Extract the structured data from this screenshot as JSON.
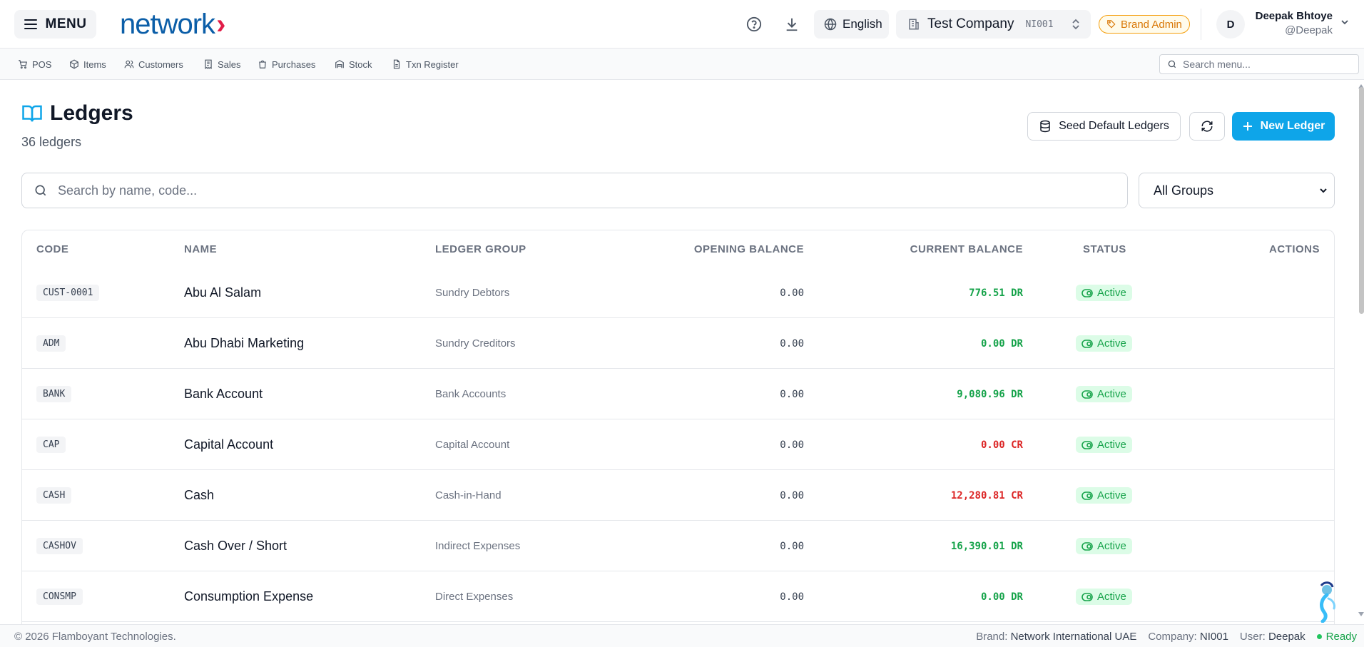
{
  "header": {
    "menu_label": "MENU",
    "logo_text": "network",
    "logo_mark": "›",
    "language": "English",
    "company": {
      "name": "Test Company",
      "code": "NI001"
    },
    "role_badge": "Brand Admin",
    "user": {
      "initial": "D",
      "name": "Deepak Bhtoye",
      "handle": "@Deepak"
    }
  },
  "nav": {
    "items": [
      {
        "label": "POS",
        "icon": "cart-icon"
      },
      {
        "label": "Items",
        "icon": "package-icon"
      },
      {
        "label": "Customers",
        "icon": "users-icon"
      },
      {
        "label": "Sales",
        "icon": "receipt-icon"
      },
      {
        "label": "Purchases",
        "icon": "shopping-bag-icon"
      },
      {
        "label": "Stock",
        "icon": "warehouse-icon"
      },
      {
        "label": "Txn Register",
        "icon": "file-text-icon"
      }
    ],
    "search_placeholder": "Search menu..."
  },
  "page": {
    "title": "Ledgers",
    "subtitle": "36 ledgers",
    "seed_button": "Seed Default Ledgers",
    "new_button": "New Ledger",
    "search_placeholder": "Search by name, code...",
    "group_filter": "All Groups"
  },
  "table": {
    "columns": [
      "CODE",
      "NAME",
      "LEDGER GROUP",
      "OPENING BALANCE",
      "CURRENT BALANCE",
      "STATUS",
      "ACTIONS"
    ],
    "rows": [
      {
        "code": "CUST-0001",
        "name": "Abu Al Salam",
        "group": "Sundry Debtors",
        "opening": "0.00",
        "current": "776.51 DR",
        "type": "DR",
        "status": "Active"
      },
      {
        "code": "ADM",
        "name": "Abu Dhabi Marketing",
        "group": "Sundry Creditors",
        "opening": "0.00",
        "current": "0.00 DR",
        "type": "DR",
        "status": "Active"
      },
      {
        "code": "BANK",
        "name": "Bank Account",
        "group": "Bank Accounts",
        "opening": "0.00",
        "current": "9,080.96 DR",
        "type": "DR",
        "status": "Active"
      },
      {
        "code": "CAP",
        "name": "Capital Account",
        "group": "Capital Account",
        "opening": "0.00",
        "current": "0.00 CR",
        "type": "CR",
        "status": "Active"
      },
      {
        "code": "CASH",
        "name": "Cash",
        "group": "Cash-in-Hand",
        "opening": "0.00",
        "current": "12,280.81 CR",
        "type": "CR",
        "status": "Active"
      },
      {
        "code": "CASHOV",
        "name": "Cash Over / Short",
        "group": "Indirect Expenses",
        "opening": "0.00",
        "current": "16,390.01 DR",
        "type": "DR",
        "status": "Active"
      },
      {
        "code": "CONSMP",
        "name": "Consumption Expense",
        "group": "Direct Expenses",
        "opening": "0.00",
        "current": "0.00 DR",
        "type": "DR",
        "status": "Active"
      }
    ]
  },
  "footer": {
    "copyright": "© 2026 Flamboyant Technologies.",
    "brand_label": "Brand:",
    "brand_value": "Network International UAE",
    "company_label": "Company:",
    "company_value": "NI001",
    "user_label": "User:",
    "user_value": "Deepak",
    "status": "Ready"
  },
  "colors": {
    "accent": "#0ea5e9",
    "debit": "#16a34a",
    "credit": "#dc2626",
    "logo": "#0b5ea8",
    "logo_mark": "#e11d48"
  }
}
